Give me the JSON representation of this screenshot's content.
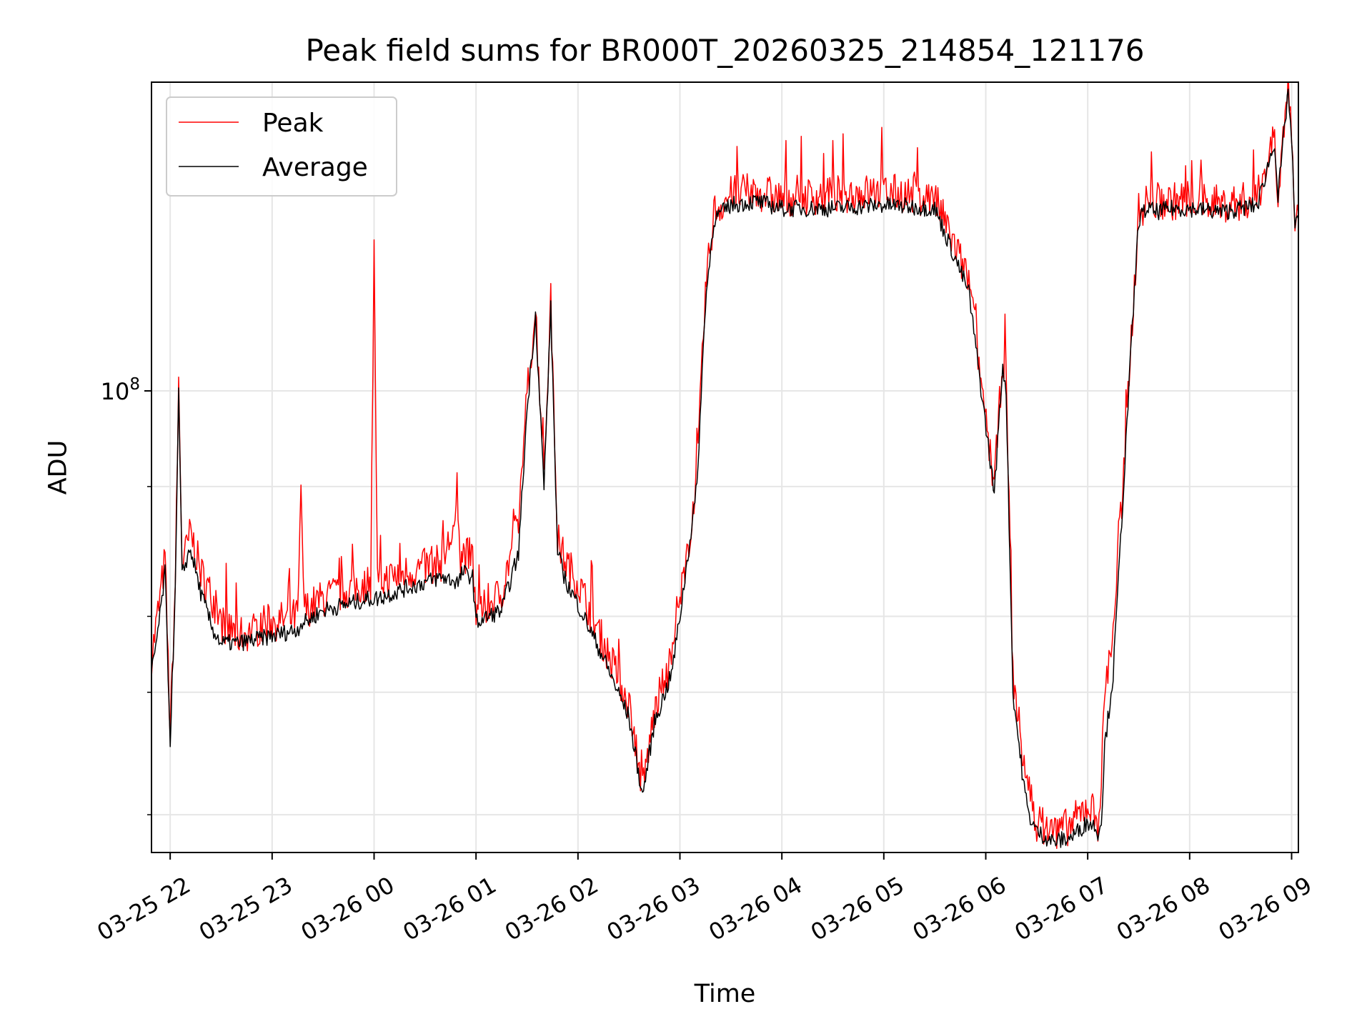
{
  "chart_data": {
    "type": "line",
    "title": "Peak field sums for BR000T_20260325_214854_121176",
    "xlabel": "Time",
    "ylabel": "ADU",
    "yscale": "log",
    "ylim": [
      8500000,
      520000000
    ],
    "xlim": [
      "2026-03-25 21:49",
      "2026-03-26 09:04"
    ],
    "grid": true,
    "legend": "top-left",
    "x_tick_labels": [
      "03-25 22",
      "03-25 23",
      "03-26 00",
      "03-26 01",
      "03-26 02",
      "03-26 03",
      "03-26 04",
      "03-26 05",
      "03-26 06",
      "03-26 07",
      "03-26 08",
      "03-26 09"
    ],
    "y_tick_labels": [
      {
        "value": 100000000,
        "base": "10",
        "exp": "8"
      }
    ],
    "y_minor_ticks": [
      10400000,
      20000000,
      30000000,
      60000000
    ],
    "series": [
      {
        "name": "Peak",
        "color": "#ff0000",
        "x": [
          "2026-03-25 21:49",
          "2026-03-25 21:54",
          "2026-03-25 21:57",
          "2026-03-25 22:00",
          "2026-03-25 22:03",
          "2026-03-25 22:05",
          "2026-03-25 22:07",
          "2026-03-25 22:09",
          "2026-03-25 22:12",
          "2026-03-25 22:18",
          "2026-03-25 22:25",
          "2026-03-25 22:30",
          "2026-03-25 22:40",
          "2026-03-25 23:00",
          "2026-03-25 23:15",
          "2026-03-25 23:17",
          "2026-03-25 23:19",
          "2026-03-25 23:30",
          "2026-03-25 23:58",
          "2026-03-26 00:00",
          "2026-03-26 00:02",
          "2026-03-26 00:20",
          "2026-03-26 00:40",
          "2026-03-26 00:50",
          "2026-03-26 00:51",
          "2026-03-26 00:52",
          "2026-03-26 00:58",
          "2026-03-26 01:00",
          "2026-03-26 01:15",
          "2026-03-26 01:25",
          "2026-03-26 01:30",
          "2026-03-26 01:35",
          "2026-03-26 01:40",
          "2026-03-26 01:44",
          "2026-03-26 01:48",
          "2026-03-26 01:53",
          "2026-03-26 02:00",
          "2026-03-26 02:15",
          "2026-03-26 02:30",
          "2026-03-26 02:38",
          "2026-03-26 02:45",
          "2026-03-26 02:55",
          "2026-03-26 03:00",
          "2026-03-26 03:10",
          "2026-03-26 03:15",
          "2026-03-26 03:20",
          "2026-03-26 03:30",
          "2026-03-26 03:45",
          "2026-03-26 04:00",
          "2026-03-26 04:30",
          "2026-03-26 05:00",
          "2026-03-26 05:30",
          "2026-03-26 05:50",
          "2026-03-26 06:05",
          "2026-03-26 06:10",
          "2026-03-26 06:12",
          "2026-03-26 06:16",
          "2026-03-26 06:22",
          "2026-03-26 06:25",
          "2026-03-26 06:30",
          "2026-03-26 06:40",
          "2026-03-26 06:50",
          "2026-03-26 07:00",
          "2026-03-26 07:04",
          "2026-03-26 07:06",
          "2026-03-26 07:08",
          "2026-03-26 07:10",
          "2026-03-26 07:15",
          "2026-03-26 07:20",
          "2026-03-26 07:25",
          "2026-03-26 07:30",
          "2026-03-26 07:35",
          "2026-03-26 07:40",
          "2026-03-26 07:50",
          "2026-03-26 08:00",
          "2026-03-26 08:20",
          "2026-03-26 08:40",
          "2026-03-26 08:50",
          "2026-03-26 08:52",
          "2026-03-26 08:58",
          "2026-03-26 09:00",
          "2026-03-26 09:02",
          "2026-03-26 09:04"
        ],
        "values": [
          24000000,
          33000000,
          41000000,
          16000000,
          36000000,
          104000000,
          40000000,
          42000000,
          47000000,
          38000000,
          33000000,
          29000000,
          27000000,
          29000000,
          30000000,
          56000000,
          31000000,
          33000000,
          36000000,
          210000000,
          36000000,
          38000000,
          40000000,
          52000000,
          40000000,
          42000000,
          41000000,
          30000000,
          34000000,
          50000000,
          98000000,
          155000000,
          65000000,
          162000000,
          45000000,
          40000000,
          36000000,
          26000000,
          19000000,
          12000000,
          18000000,
          24000000,
          32000000,
          62000000,
          170000000,
          260000000,
          285000000,
          290000000,
          280000000,
          285000000,
          290000000,
          280000000,
          180000000,
          60000000,
          120000000,
          105000000,
          22000000,
          14000000,
          12000000,
          10000000,
          9500000,
          9800000,
          11000000,
          10500000,
          10000000,
          12500000,
          20000000,
          28000000,
          55000000,
          120000000,
          260000000,
          275000000,
          275000000,
          275000000,
          280000000,
          270000000,
          280000000,
          395000000,
          290000000,
          520000000,
          400000000,
          250000000,
          260000000
        ]
      },
      {
        "name": "Average",
        "color": "#000000",
        "x": [
          "2026-03-25 21:49",
          "2026-03-25 21:54",
          "2026-03-25 21:57",
          "2026-03-25 22:00",
          "2026-03-25 22:03",
          "2026-03-25 22:05",
          "2026-03-25 22:07",
          "2026-03-25 22:09",
          "2026-03-25 22:12",
          "2026-03-25 22:18",
          "2026-03-25 22:25",
          "2026-03-25 22:30",
          "2026-03-25 22:40",
          "2026-03-25 23:00",
          "2026-03-25 23:15",
          "2026-03-25 23:17",
          "2026-03-25 23:19",
          "2026-03-25 23:30",
          "2026-03-25 23:58",
          "2026-03-26 00:00",
          "2026-03-26 00:02",
          "2026-03-26 00:20",
          "2026-03-26 00:40",
          "2026-03-26 00:50",
          "2026-03-26 00:51",
          "2026-03-26 00:52",
          "2026-03-26 00:58",
          "2026-03-26 01:00",
          "2026-03-26 01:15",
          "2026-03-26 01:25",
          "2026-03-26 01:30",
          "2026-03-26 01:35",
          "2026-03-26 01:40",
          "2026-03-26 01:44",
          "2026-03-26 01:48",
          "2026-03-26 01:53",
          "2026-03-26 02:00",
          "2026-03-26 02:15",
          "2026-03-26 02:30",
          "2026-03-26 02:38",
          "2026-03-26 02:45",
          "2026-03-26 02:55",
          "2026-03-26 03:00",
          "2026-03-26 03:10",
          "2026-03-26 03:15",
          "2026-03-26 03:20",
          "2026-03-26 03:30",
          "2026-03-26 03:45",
          "2026-03-26 04:00",
          "2026-03-26 04:30",
          "2026-03-26 05:00",
          "2026-03-26 05:30",
          "2026-03-26 05:50",
          "2026-03-26 06:05",
          "2026-03-26 06:10",
          "2026-03-26 06:12",
          "2026-03-26 06:16",
          "2026-03-26 06:22",
          "2026-03-26 06:25",
          "2026-03-26 06:30",
          "2026-03-26 06:40",
          "2026-03-26 06:50",
          "2026-03-26 07:00",
          "2026-03-26 07:04",
          "2026-03-26 07:06",
          "2026-03-26 07:08",
          "2026-03-26 07:10",
          "2026-03-26 07:15",
          "2026-03-26 07:20",
          "2026-03-26 07:25",
          "2026-03-26 07:30",
          "2026-03-26 07:35",
          "2026-03-26 07:40",
          "2026-03-26 07:50",
          "2026-03-26 08:00",
          "2026-03-26 08:20",
          "2026-03-26 08:40",
          "2026-03-26 08:50",
          "2026-03-26 08:52",
          "2026-03-26 08:58",
          "2026-03-26 09:00",
          "2026-03-26 09:02",
          "2026-03-26 09:04"
        ],
        "values": [
          22000000,
          30000000,
          38000000,
          15500000,
          34000000,
          100000000,
          37000000,
          40000000,
          43000000,
          34000000,
          28000000,
          26000000,
          26000000,
          27000000,
          28000000,
          29000000,
          29000000,
          31000000,
          33000000,
          33000000,
          33000000,
          35000000,
          37000000,
          36000000,
          37000000,
          38000000,
          37000000,
          29000000,
          31000000,
          42000000,
          90000000,
          150000000,
          60000000,
          155000000,
          42000000,
          36000000,
          32000000,
          24000000,
          17500000,
          11500000,
          17000000,
          22000000,
          30000000,
          60000000,
          160000000,
          250000000,
          270000000,
          275000000,
          265000000,
          265000000,
          270000000,
          265000000,
          170000000,
          58000000,
          115000000,
          100000000,
          20000000,
          12500000,
          10500000,
          9500000,
          9000000,
          9200000,
          10000000,
          9800000,
          9500000,
          10000000,
          15000000,
          22000000,
          50000000,
          115000000,
          250000000,
          265000000,
          260000000,
          265000000,
          265000000,
          260000000,
          270000000,
          380000000,
          280000000,
          500000000,
          380000000,
          240000000,
          250000000
        ]
      }
    ]
  }
}
